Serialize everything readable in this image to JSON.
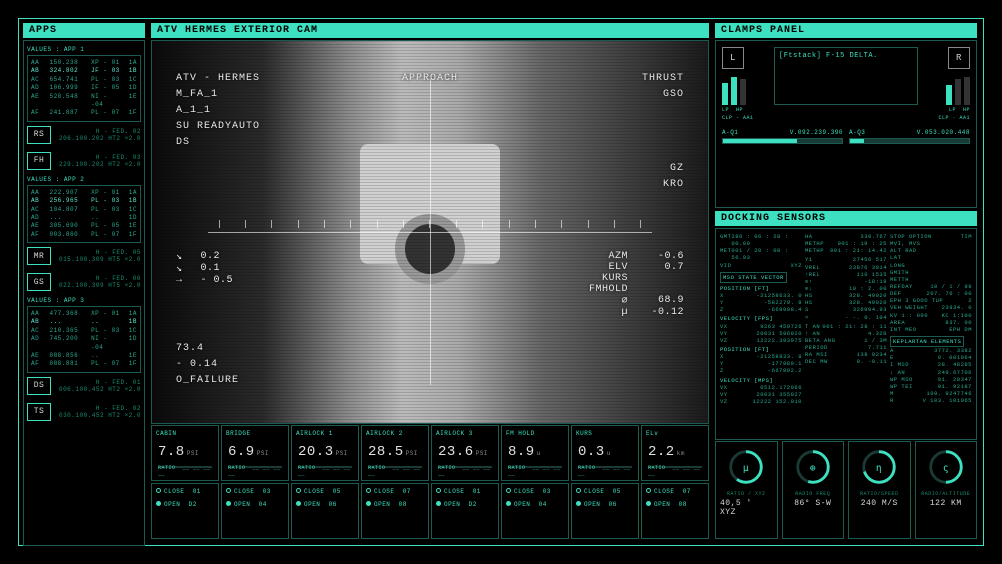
{
  "colors": {
    "accent": "#3de0c0",
    "bg": "#000000",
    "border_dim": "#1a5a50",
    "text_dim": "#2aa890",
    "white": "#e0e0e0"
  },
  "apps": {
    "title": "APPS",
    "blocks": [
      {
        "label": "VALUES : APP 1",
        "rows": [
          [
            "AA",
            "150.238",
            "XP - 01",
            "1A"
          ],
          [
            "AB",
            "324.802",
            "JF - 03",
            "1B"
          ],
          [
            "AC",
            "654.741",
            "PL - 03",
            "1C"
          ],
          [
            "AD",
            "106.999",
            "IF - 05",
            "1D"
          ],
          [
            "AE",
            "520.548",
            "NI - -04",
            "1E"
          ],
          [
            "AF",
            "241.887",
            "PL - 07",
            "1F"
          ]
        ],
        "btns": [
          "RS",
          "FH"
        ],
        "meta": [
          {
            "t": "H - FED. 02",
            "v": "206.100.202 HT2 ×2.0"
          },
          {
            "t": "H - FED. 03",
            "v": "229.100.202 HT2 ×2.0"
          }
        ]
      },
      {
        "label": "VALUES : APP 2",
        "rows": [
          [
            "AA",
            "222.907",
            "XP - 01",
            "1A"
          ],
          [
            "AB",
            "256.965",
            "PL - 03",
            "1B"
          ],
          [
            "AC",
            "104.807",
            "PL - 03",
            "1C"
          ],
          [
            "AD",
            "...",
            "..",
            "1D"
          ],
          [
            "AE",
            "305.690",
            "PL - 05",
            "1E"
          ],
          [
            "AF",
            "003.860",
            "PL - 07",
            "1F"
          ]
        ],
        "btns": [
          "MR",
          "GS"
        ],
        "meta": [
          {
            "t": "H - FED. 05",
            "v": "015.100.309 HT5 ×2.0"
          },
          {
            "t": "H - FED. 06",
            "v": "022.100.309 HT5 ×2.0"
          }
        ]
      },
      {
        "label": "VALUES : APP 3",
        "rows": [
          [
            "AA",
            "477.368",
            "XP - 01",
            "1A"
          ],
          [
            "AB",
            "...",
            "..",
            "1B"
          ],
          [
            "AC",
            "210.365",
            "PL - 03",
            "1C"
          ],
          [
            "AD",
            "745.200",
            "NI - -04",
            "1D"
          ],
          [
            "AE",
            "088.856",
            "..",
            "1E"
          ],
          [
            "AF",
            "088.881",
            "PL - 07",
            "1F"
          ]
        ],
        "btns": [
          "DS",
          "TS"
        ],
        "meta": [
          {
            "t": "H - FED. 01",
            "v": "006.100.452 HT2 ×2.0"
          },
          {
            "t": "H - FED. 02",
            "v": "030.100.452 HT2 ×2.0"
          }
        ]
      }
    ]
  },
  "cam": {
    "title": "ATV HERMES EXTERIOR CAM",
    "overlay": {
      "tl": [
        "ATV - HERMES",
        "M_FA_1",
        "A_1_1",
        "SU READYAUTO",
        "DS"
      ],
      "tc": "APPROACH",
      "tr": [
        "THRUST",
        "GSO"
      ],
      "mr": [
        "GZ",
        "KRO"
      ],
      "ml_arrows": [
        {
          "a": "↘",
          "v": "0.2"
        },
        {
          "a": "↘",
          "v": "0.1"
        },
        {
          "a": "→",
          "v": "- 0.5"
        }
      ],
      "ml_block": [
        "73.4",
        "- 0.14",
        "O_FAILURE"
      ],
      "rvals": [
        {
          "k": "AZM",
          "v": "-0.6"
        },
        {
          "k": "ELV",
          "v": "0.7"
        },
        {
          "k": "KURS",
          "v": ""
        },
        {
          "k": "FMHOLD",
          "v": ""
        },
        {
          "k": "⌀",
          "v": "68.9"
        },
        {
          "k": "µ",
          "v": "-0.12"
        }
      ]
    }
  },
  "strip": {
    "gauges": [
      {
        "title": "CABIN",
        "val": "7.8",
        "unit": "PSI",
        "ratio": "RATIO"
      },
      {
        "title": "BRIDGE",
        "val": "6.9",
        "unit": "PSI",
        "ratio": "RATIO"
      },
      {
        "title": "AIRLOCK 1",
        "val": "20.3",
        "unit": "PSI",
        "ratio": "RATIO"
      },
      {
        "title": "AIRLOCK 2",
        "val": "28.5",
        "unit": "PSI",
        "ratio": "RATIO"
      },
      {
        "title": "AIRLOCK 3",
        "val": "23.6",
        "unit": "PSI",
        "ratio": "RATIO"
      },
      {
        "title": "FM HOLD",
        "val": "8.9",
        "unit": "u",
        "ratio": "RATIO"
      },
      {
        "title": "KURS",
        "val": "0.3",
        "unit": "u",
        "ratio": "RATIO"
      },
      {
        "title": "ELv",
        "val": "2.2",
        "unit": "km",
        "ratio": "RATIO"
      }
    ],
    "bottom": [
      {
        "c": "CLOSE",
        "o": "OPEN",
        "n": "01",
        "n2": "D2"
      },
      {
        "c": "CLOSE",
        "o": "OPEN",
        "n": "03",
        "n2": "04"
      },
      {
        "c": "CLOSE",
        "o": "OPEN",
        "n": "05",
        "n2": "06"
      },
      {
        "c": "CLOSE",
        "o": "OPEN",
        "n": "07",
        "n2": "08"
      },
      {
        "c": "CLOSE",
        "o": "OPEN",
        "n": "01",
        "n2": "D2"
      },
      {
        "c": "CLOSE",
        "o": "OPEN",
        "n": "03",
        "n2": "04"
      },
      {
        "c": "CLOSE",
        "o": "OPEN",
        "n": "05",
        "n2": "06"
      },
      {
        "c": "CLOSE",
        "o": "OPEN",
        "n": "07",
        "n2": "08"
      }
    ]
  },
  "clamps": {
    "title": "CLAMPS PANEL",
    "left_btn": "L",
    "right_btn": "R",
    "textbox": "[Ftstack] F-15 DELTA.",
    "lp": "LP",
    "hp": "HP",
    "clp_l": "CLP - AA1",
    "clp_r": "CLP · AA1",
    "prog": [
      {
        "label": "A-Q1",
        "val": "V.092.239.390",
        "fill": 62
      },
      {
        "label": "A-Q3",
        "val": "V.053.020.448",
        "fill": 12
      }
    ]
  },
  "dock": {
    "title": "DOCKING SENSORS",
    "col1": [
      {
        "k": "GMT",
        "v": "286 : 06 : 28 : 00.00"
      },
      {
        "k": "MET",
        "v": "001 / 20 : 08 : 56.03"
      },
      {
        "k": "VID",
        "v": "XYZ"
      },
      {
        "t": "MSO STATE VECTOR"
      },
      {
        "s": "POSITION [FT]"
      },
      {
        "k": "X",
        "v": "-21258633. 0"
      },
      {
        "k": "Y",
        "v": "-582279. 8"
      },
      {
        "k": "Z",
        "v": "-669998.4"
      },
      {
        "s": "VELOCITY [FPS]"
      },
      {
        "k": "VX",
        "v": "9263 459726"
      },
      {
        "k": "VY",
        "v": "20031 596920"
      },
      {
        "k": "VZ",
        "v": "12222.393975"
      },
      {
        "s": "POSITION [FT]"
      },
      {
        "k": "X",
        "v": "-21258833. 8"
      },
      {
        "k": "Y",
        "v": "-177989.1"
      },
      {
        "k": "Z",
        "v": "-667892.2"
      },
      {
        "s": "VELOCITY [MPS]"
      },
      {
        "k": "VX",
        "v": "0512.172966"
      },
      {
        "k": "VY",
        "v": "20031 355027"
      },
      {
        "k": "VZ",
        "v": "12222 152.010"
      }
    ],
    "col2": [
      {
        "k": "HA",
        "v": "330.767"
      },
      {
        "k": "METHP",
        "v": "901 : 19 : 25"
      },
      {
        "k": "METHP",
        "v": "901 : 21: 14.42"
      },
      {
        "s": " "
      },
      {
        "k": "Y1",
        "v": "27456 517"
      },
      {
        "k": "VREL",
        "v": "23876 3014"
      },
      {
        "k": "↑REL",
        "v": "110 1535"
      },
      {
        "k": "⊙↑",
        "v": "-18:19"
      },
      {
        "k": "⊙↓",
        "v": "10 : 2. 00"
      },
      {
        "k": "HS",
        "v": "328. 49020"
      },
      {
        "k": "HS",
        "v": "328. 49020"
      },
      {
        "k": "S",
        "v": "326904.93"
      },
      {
        "k": "×",
        "v": "- -. 0. 104"
      },
      {
        "s": " "
      },
      {
        "k": "T AN",
        "v": "001 : 21: 28 : 11"
      },
      {
        "k": "↑ AN",
        "v": "4.328"
      },
      {
        "k": "BETA ANG",
        "v": "1 / 3M"
      },
      {
        "k": "PERIOD",
        "v": "7.711"
      },
      {
        "k": "RA MSI",
        "v": "138 9234"
      },
      {
        "k": "DEC MW",
        "v": "9. -0.11"
      }
    ],
    "col3": [
      {
        "k": "STOP OPTION",
        "v": "TIM"
      },
      {
        "k": "MVI, MVS",
        "v": ""
      },
      {
        "k": "ALT RAD",
        "v": ""
      },
      {
        "k": "LAT",
        "v": ""
      },
      {
        "k": "LONG",
        "v": ""
      },
      {
        "k": "GMITH",
        "v": ""
      },
      {
        "k": "METTH",
        "v": ""
      },
      {
        "k": "REFDAY",
        "v": "10 / 1 / 99"
      },
      {
        "k": "DEF",
        "v": "207. 76 : 00"
      },
      {
        "k": "EPH 3 GOOD TUP",
        "v": "2"
      },
      {
        "k": "VEH WEIGHT",
        "v": "23934. 0"
      },
      {
        "k": "KV  1 : 000",
        "v": "KC 1:100"
      },
      {
        "k": "AREA",
        "v": "837. 00"
      },
      {
        "k": "INT MEO",
        "v": "EPH   DM"
      },
      {
        "t": "KEPLARTAN ELEMENTS"
      },
      {
        "k": "A",
        "v": "3772. 3382"
      },
      {
        "k": "E",
        "v": "0. 001064"
      },
      {
        "k": "I MSO",
        "v": "28. 48285"
      },
      {
        "k": "↓ AN",
        "v": "249.67706"
      },
      {
        "k": "WP MSO",
        "v": "91. 29347"
      },
      {
        "k": "WP TEI",
        "v": "91. 92187"
      },
      {
        "k": "M",
        "v": "109. 9247746"
      },
      {
        "k": "R",
        "v": "V 103. 101065"
      }
    ]
  },
  "radials": [
    {
      "glyph": "µ",
      "label": "RATIO / XYZ",
      "val": "40,5 ' XYZ",
      "pct": 0.6
    },
    {
      "glyph": "⊕",
      "label": "RADIO FREQ",
      "val": "86° S-W",
      "pct": 0.55
    },
    {
      "glyph": "η",
      "label": "RATIO/SPEED",
      "val": "240 M/S",
      "pct": 0.7
    },
    {
      "glyph": "ς",
      "label": "RADIO/ALTITUDE",
      "val": "122  KM",
      "pct": 0.5
    }
  ]
}
